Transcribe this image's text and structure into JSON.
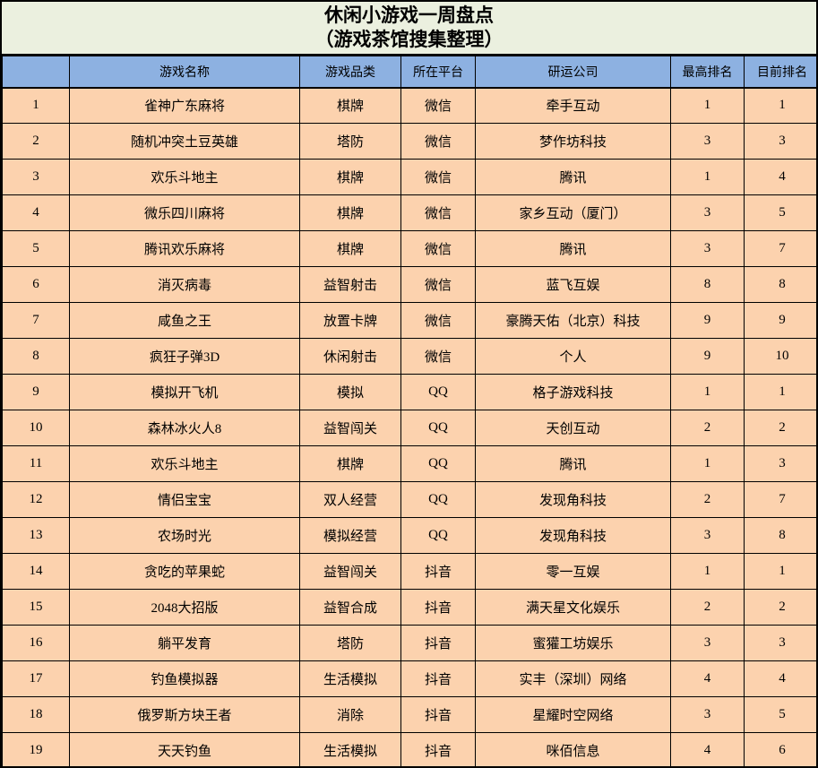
{
  "title": {
    "line1": "休闲小游戏一周盘点",
    "line2": "（游戏茶馆搜集整理）"
  },
  "colors": {
    "title_bg": "#EBF0DF",
    "header_bg": "#8DB1E1",
    "row_bg": "#FCD2AE",
    "border": "#000000",
    "text": "#000000"
  },
  "table": {
    "headers": [
      "",
      "游戏名称",
      "游戏品类",
      "所在平台",
      "研运公司",
      "最高排名",
      "目前排名"
    ],
    "rows": [
      [
        "1",
        "雀神广东麻将",
        "棋牌",
        "微信",
        "牵手互动",
        "1",
        "1"
      ],
      [
        "2",
        "随机冲突土豆英雄",
        "塔防",
        "微信",
        "梦作坊科技",
        "3",
        "3"
      ],
      [
        "3",
        "欢乐斗地主",
        "棋牌",
        "微信",
        "腾讯",
        "1",
        "4"
      ],
      [
        "4",
        "微乐四川麻将",
        "棋牌",
        "微信",
        "家乡互动（厦门）",
        "3",
        "5"
      ],
      [
        "5",
        "腾讯欢乐麻将",
        "棋牌",
        "微信",
        "腾讯",
        "3",
        "7"
      ],
      [
        "6",
        "消灭病毒",
        "益智射击",
        "微信",
        "蓝飞互娱",
        "8",
        "8"
      ],
      [
        "7",
        "咸鱼之王",
        "放置卡牌",
        "微信",
        "豪腾天佑（北京）科技",
        "9",
        "9"
      ],
      [
        "8",
        "疯狂子弹3D",
        "休闲射击",
        "微信",
        "个人",
        "9",
        "10"
      ],
      [
        "9",
        "模拟开飞机",
        "模拟",
        "QQ",
        "格子游戏科技",
        "1",
        "1"
      ],
      [
        "10",
        "森林冰火人8",
        "益智闯关",
        "QQ",
        "天创互动",
        "2",
        "2"
      ],
      [
        "11",
        "欢乐斗地主",
        "棋牌",
        "QQ",
        "腾讯",
        "1",
        "3"
      ],
      [
        "12",
        "情侣宝宝",
        "双人经营",
        "QQ",
        "发现角科技",
        "2",
        "7"
      ],
      [
        "13",
        "农场时光",
        "模拟经营",
        "QQ",
        "发现角科技",
        "3",
        "8"
      ],
      [
        "14",
        "贪吃的苹果蛇",
        "益智闯关",
        "抖音",
        "零一互娱",
        "1",
        "1"
      ],
      [
        "15",
        "2048大招版",
        "益智合成",
        "抖音",
        "满天星文化娱乐",
        "2",
        "2"
      ],
      [
        "16",
        "躺平发育",
        "塔防",
        "抖音",
        "蜜獾工坊娱乐",
        "3",
        "3"
      ],
      [
        "17",
        "钓鱼模拟器",
        "生活模拟",
        "抖音",
        "实丰（深圳）网络",
        "4",
        "4"
      ],
      [
        "18",
        "俄罗斯方块王者",
        "消除",
        "抖音",
        "星耀时空网络",
        "3",
        "5"
      ],
      [
        "19",
        "天天钓鱼",
        "生活模拟",
        "抖音",
        "咪佰信息",
        "4",
        "6"
      ]
    ]
  }
}
